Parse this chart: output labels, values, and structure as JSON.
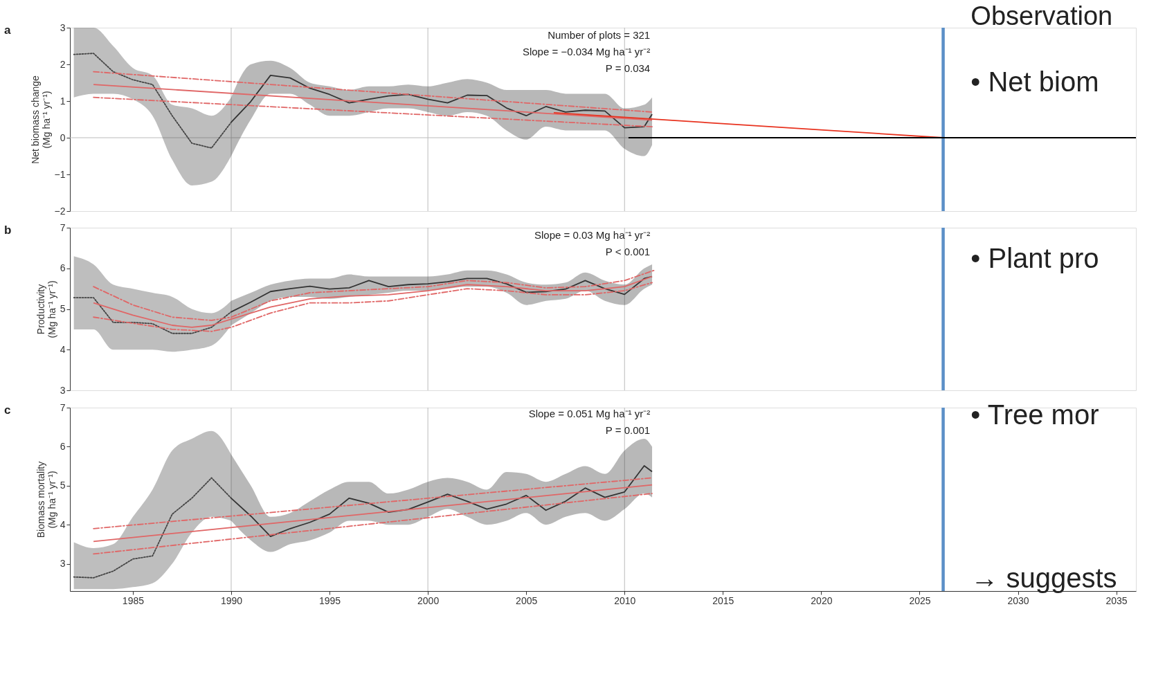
{
  "chart_data": [
    {
      "type": "line",
      "ylabel": "Net biomass change\n(Mg ha⁻¹ yr⁻¹)",
      "xlim": [
        1981.8,
        2036
      ],
      "xticks": [
        1985,
        1990,
        1995,
        2000,
        2005,
        2010,
        2015,
        2020,
        2025,
        2030,
        2035
      ],
      "ylim": [
        -2,
        3
      ],
      "yticks": [
        -2,
        -1,
        0,
        1,
        2,
        3
      ],
      "tick_labels": "y",
      "grid": false,
      "annotations": [
        "a",
        "Number of plots = 321",
        "Slope = −0.034 Mg ha⁻¹ yr⁻²",
        "P = 0.034",
        "Observation",
        "•  Net biom"
      ],
      "ref_lines": [
        {
          "axis": "x",
          "value": 1990,
          "color": "#bbbbbb"
        },
        {
          "axis": "x",
          "value": 2000,
          "color": "#bbbbbb"
        },
        {
          "axis": "x",
          "value": 2010,
          "color": "#bbbbbb"
        },
        {
          "axis": "y",
          "value": 0,
          "color": "#bbbbbb"
        },
        {
          "axis": "x",
          "value": 2026.2,
          "color": "#5b8fc7"
        }
      ],
      "series": [
        {
          "color": "#444444",
          "line_style": "dotted",
          "x": [
            1982,
            1983,
            1984,
            1985,
            1986,
            1987,
            1988,
            1989,
            1990
          ],
          "values": [
            2.27,
            2.3,
            1.8,
            1.58,
            1.45,
            0.6,
            -0.15,
            -0.28,
            0.42
          ],
          "lower": [
            1.1,
            1.2,
            1.2,
            1.05,
            0.6,
            -0.6,
            -1.3,
            -1.2,
            -0.5
          ],
          "upper": [
            3.0,
            3.0,
            2.5,
            1.9,
            1.7,
            0.9,
            0.8,
            0.6,
            1.1
          ]
        },
        {
          "color": "#333333",
          "line_style": "solid",
          "x": [
            1990,
            1991,
            1992,
            1993,
            1994,
            1995,
            1996,
            1997,
            1998,
            1999,
            2000,
            2001,
            2002,
            2003,
            2004,
            2005,
            2006,
            2007,
            2008,
            2009,
            2010,
            2011,
            2011.4
          ],
          "values": [
            0.42,
            0.99,
            1.7,
            1.63,
            1.35,
            1.18,
            0.95,
            1.05,
            1.14,
            1.18,
            1.05,
            0.95,
            1.16,
            1.15,
            0.81,
            0.6,
            0.85,
            0.7,
            0.75,
            0.73,
            0.27,
            0.3,
            0.64
          ],
          "lower": [
            -0.5,
            0.5,
            1.2,
            1.2,
            0.9,
            0.6,
            0.6,
            0.7,
            0.8,
            0.8,
            0.7,
            0.6,
            0.7,
            0.6,
            0.2,
            -0.05,
            0.3,
            0.2,
            0.2,
            0.2,
            -0.3,
            -0.5,
            -0.2
          ],
          "upper": [
            1.1,
            2.0,
            2.1,
            1.9,
            1.5,
            1.4,
            1.3,
            1.4,
            1.4,
            1.45,
            1.4,
            1.5,
            1.6,
            1.5,
            1.3,
            1.3,
            1.3,
            1.2,
            1.2,
            1.2,
            0.8,
            0.9,
            1.1
          ]
        },
        {
          "color": "#e06666",
          "line_style": "solid",
          "x": [
            1983,
            2011.4
          ],
          "values": [
            1.45,
            0.48
          ]
        },
        {
          "color": "#e06666",
          "line_style": "dashed",
          "x": [
            1983,
            2011.4
          ],
          "values": [
            1.8,
            0.7
          ]
        },
        {
          "color": "#e06666",
          "line_style": "dashed",
          "x": [
            1983,
            2011.4
          ],
          "values": [
            1.1,
            0.3
          ]
        },
        {
          "color": "#e8321e",
          "line_style": "solid",
          "x": [
            2006.4,
            2026.2
          ],
          "values": [
            0.68,
            0
          ]
        },
        {
          "color": "#000000",
          "line_style": "solid",
          "x": [
            2010.2,
            2036
          ],
          "values": [
            0,
            0
          ]
        }
      ]
    },
    {
      "type": "line",
      "ylabel": "Productivity\n(Mg ha⁻¹ yr⁻¹)",
      "xlim": [
        1981.8,
        2036
      ],
      "xticks": [
        1985,
        1990,
        1995,
        2000,
        2005,
        2010,
        2015,
        2020,
        2025,
        2030,
        2035
      ],
      "ylim": [
        3,
        7
      ],
      "yticks": [
        3,
        4,
        5,
        6,
        7
      ],
      "tick_labels": "y",
      "grid": false,
      "annotations": [
        "b",
        "Slope = 0.03 Mg ha⁻¹ yr⁻²",
        "P < 0.001",
        "•  Plant pro"
      ],
      "ref_lines": [
        {
          "axis": "x",
          "value": 1990,
          "color": "#bbbbbb"
        },
        {
          "axis": "x",
          "value": 2000,
          "color": "#bbbbbb"
        },
        {
          "axis": "x",
          "value": 2010,
          "color": "#bbbbbb"
        },
        {
          "axis": "x",
          "value": 2026.2,
          "color": "#5b8fc7"
        }
      ],
      "series": [
        {
          "color": "#444444",
          "line_style": "dotted",
          "x": [
            1982,
            1983,
            1984,
            1985,
            1986,
            1987,
            1988,
            1989,
            1990
          ],
          "values": [
            5.28,
            5.28,
            4.67,
            4.67,
            4.64,
            4.4,
            4.4,
            4.55,
            4.93
          ],
          "lower": [
            4.5,
            4.5,
            4.0,
            4.0,
            4.0,
            3.95,
            4.0,
            4.1,
            4.6
          ],
          "upper": [
            6.3,
            6.1,
            5.6,
            5.5,
            5.4,
            5.3,
            5.0,
            4.9,
            5.2
          ]
        },
        {
          "color": "#333333",
          "line_style": "solid",
          "x": [
            1990,
            1991,
            1992,
            1993,
            1994,
            1995,
            1996,
            1997,
            1998,
            1999,
            2000,
            2001,
            2002,
            2003,
            2004,
            2005,
            2006,
            2007,
            2008,
            2009,
            2010,
            2011,
            2011.4
          ],
          "values": [
            4.93,
            5.17,
            5.43,
            5.5,
            5.56,
            5.49,
            5.52,
            5.7,
            5.55,
            5.6,
            5.62,
            5.67,
            5.75,
            5.75,
            5.62,
            5.41,
            5.43,
            5.49,
            5.7,
            5.5,
            5.36,
            5.75,
            5.8
          ],
          "lower": [
            4.6,
            4.9,
            5.2,
            5.3,
            5.3,
            5.25,
            5.3,
            5.35,
            5.4,
            5.45,
            5.45,
            5.5,
            5.55,
            5.55,
            5.4,
            5.1,
            5.2,
            5.25,
            5.45,
            5.2,
            5.1,
            5.5,
            5.6
          ],
          "upper": [
            5.2,
            5.4,
            5.6,
            5.7,
            5.75,
            5.75,
            5.85,
            5.8,
            5.8,
            5.8,
            5.8,
            5.85,
            5.95,
            5.95,
            5.85,
            5.65,
            5.6,
            5.65,
            5.9,
            5.7,
            5.6,
            6.0,
            6.1
          ]
        },
        {
          "color": "#e06666",
          "line_style": "solid",
          "x": [
            1983,
            1985,
            1987,
            1988,
            1989,
            1990,
            1992,
            1994,
            1996,
            1998,
            2000,
            2002,
            2004,
            2006,
            2008,
            2010,
            2011.4
          ],
          "values": [
            5.15,
            4.85,
            4.6,
            4.55,
            4.6,
            4.75,
            5.05,
            5.25,
            5.32,
            5.35,
            5.45,
            5.6,
            5.55,
            5.45,
            5.45,
            5.55,
            5.8
          ]
        },
        {
          "color": "#e06666",
          "line_style": "dashed",
          "x": [
            1983,
            1985,
            1987,
            1989,
            1990,
            1992,
            1994,
            1996,
            1998,
            2000,
            2002,
            2004,
            2006,
            2008,
            2010,
            2011.5
          ],
          "values": [
            5.55,
            5.1,
            4.8,
            4.72,
            4.8,
            5.2,
            5.4,
            5.45,
            5.5,
            5.55,
            5.7,
            5.65,
            5.52,
            5.55,
            5.7,
            5.95
          ]
        },
        {
          "color": "#e06666",
          "line_style": "dashed",
          "x": [
            1983,
            1985,
            1987,
            1989,
            1990,
            1992,
            1994,
            1996,
            1998,
            2000,
            2002,
            2004,
            2006,
            2008,
            2010,
            2011.4
          ],
          "values": [
            4.8,
            4.65,
            4.5,
            4.45,
            4.55,
            4.9,
            5.15,
            5.15,
            5.2,
            5.35,
            5.5,
            5.45,
            5.35,
            5.35,
            5.45,
            5.65
          ]
        }
      ]
    },
    {
      "type": "line",
      "ylabel": "Biomass mortality\n(Mg ha⁻¹ yr⁻¹)",
      "xlim": [
        1981.8,
        2036
      ],
      "xticks": [
        1985,
        1990,
        1995,
        2000,
        2005,
        2010,
        2015,
        2020,
        2025,
        2030,
        2035
      ],
      "ylim": [
        2.3,
        7
      ],
      "yticks": [
        3,
        4,
        5,
        6,
        7
      ],
      "grid": false,
      "annotations": [
        "c",
        "Slope = 0.051 Mg ha⁻¹ yr⁻²",
        "P = 0.001",
        "•  Tree mor",
        "→ suggests"
      ],
      "ref_lines": [
        {
          "axis": "x",
          "value": 1990,
          "color": "#bbbbbb"
        },
        {
          "axis": "x",
          "value": 2000,
          "color": "#bbbbbb"
        },
        {
          "axis": "x",
          "value": 2010,
          "color": "#bbbbbb"
        },
        {
          "axis": "x",
          "value": 2026.2,
          "color": "#5b8fc7"
        }
      ],
      "series": [
        {
          "color": "#444444",
          "line_style": "dotted",
          "x": [
            1982,
            1983,
            1984,
            1985,
            1986,
            1987,
            1988,
            1989,
            1990
          ],
          "values": [
            2.66,
            2.64,
            2.81,
            3.12,
            3.2,
            4.27,
            4.68,
            5.2,
            4.68
          ],
          "lower": [
            2.35,
            2.35,
            2.35,
            2.4,
            2.5,
            3.0,
            3.8,
            4.2,
            4.1
          ],
          "upper": [
            3.55,
            3.4,
            3.5,
            4.2,
            4.9,
            5.9,
            6.2,
            6.4,
            5.8
          ]
        },
        {
          "color": "#333333",
          "line_style": "solid",
          "x": [
            1990,
            1991,
            1992,
            1993,
            1994,
            1995,
            1996,
            1997,
            1998,
            1999,
            2000,
            2001,
            2002,
            2003,
            2004,
            2005,
            2006,
            2007,
            2008,
            2009,
            2010,
            2011,
            2011.4
          ],
          "values": [
            4.68,
            4.22,
            3.7,
            3.9,
            4.06,
            4.27,
            4.68,
            4.55,
            4.32,
            4.39,
            4.58,
            4.78,
            4.6,
            4.4,
            4.53,
            4.75,
            4.37,
            4.6,
            4.94,
            4.7,
            4.84,
            5.51,
            5.36
          ],
          "lower": [
            4.1,
            3.6,
            3.3,
            3.5,
            3.6,
            3.8,
            4.1,
            4.1,
            4.0,
            4.0,
            4.2,
            4.4,
            4.2,
            4.0,
            4.1,
            4.3,
            4.0,
            4.2,
            4.3,
            4.1,
            4.4,
            4.8,
            4.7
          ],
          "upper": [
            5.8,
            5.0,
            4.2,
            4.3,
            4.6,
            4.9,
            5.1,
            5.1,
            4.8,
            4.9,
            5.1,
            5.2,
            5.1,
            4.9,
            5.35,
            5.3,
            5.1,
            5.3,
            5.5,
            5.3,
            5.9,
            6.2,
            6.0
          ]
        },
        {
          "color": "#e06666",
          "line_style": "solid",
          "x": [
            1983,
            2011.4
          ],
          "values": [
            3.57,
            5.02
          ]
        },
        {
          "color": "#e06666",
          "line_style": "dashed",
          "x": [
            1983,
            2011.4
          ],
          "values": [
            3.9,
            5.2
          ]
        },
        {
          "color": "#e06666",
          "line_style": "dashed",
          "x": [
            1983,
            2011.4
          ],
          "values": [
            3.25,
            4.8
          ]
        }
      ]
    }
  ]
}
